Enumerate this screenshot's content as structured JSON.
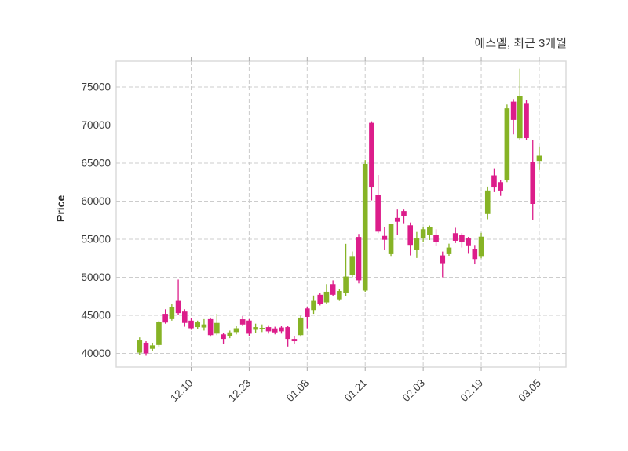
{
  "title": "에스엘, 최근 3개월",
  "chart_data": {
    "type": "candlestick",
    "title": "에스엘, 최근 3개월",
    "ylabel": "Price",
    "xlabel": "",
    "grid": true,
    "legend": "none",
    "ylim": [
      38200,
      78400
    ],
    "y_ticks": [
      40000,
      45000,
      50000,
      55000,
      60000,
      65000,
      70000,
      75000
    ],
    "x_tick_labels": [
      "12.10",
      "12.23",
      "01.08",
      "01.21",
      "02.03",
      "02.19",
      "03.05"
    ],
    "x_tick_indices": [
      8,
      17,
      26,
      35,
      44,
      53,
      62
    ],
    "colors": {
      "up": "#86b325",
      "down": "#dc1d8a",
      "grid": "#cccccc",
      "frame": "#d9d9d9",
      "tick": "#aaaaaa",
      "text": "#3d3d3d"
    },
    "candles": [
      [
        40100,
        42100,
        39800,
        41700
      ],
      [
        41400,
        41600,
        39700,
        40000
      ],
      [
        40600,
        41400,
        40300,
        41050
      ],
      [
        41100,
        44300,
        40900,
        44100
      ],
      [
        45200,
        45800,
        43900,
        44050
      ],
      [
        44500,
        46500,
        44300,
        46100
      ],
      [
        46900,
        49700,
        45100,
        45300
      ],
      [
        45500,
        45800,
        43500,
        44000
      ],
      [
        44300,
        44600,
        43100,
        43300
      ],
      [
        43450,
        44300,
        43200,
        44070
      ],
      [
        43400,
        44500,
        43000,
        43800
      ],
      [
        44500,
        44700,
        42200,
        42400
      ],
      [
        42600,
        45200,
        42400,
        44000
      ],
      [
        42500,
        42700,
        41200,
        41900
      ],
      [
        42250,
        43000,
        42000,
        42760
      ],
      [
        42800,
        43600,
        42500,
        43300
      ],
      [
        44480,
        44900,
        43600,
        43790
      ],
      [
        44310,
        44500,
        42250,
        42590
      ],
      [
        43100,
        43900,
        42700,
        43450
      ],
      [
        43150,
        43800,
        42800,
        43350
      ],
      [
        43450,
        43700,
        42600,
        42900
      ],
      [
        43280,
        43500,
        42500,
        42760
      ],
      [
        43400,
        43600,
        42600,
        42900
      ],
      [
        43450,
        43600,
        40900,
        41900
      ],
      [
        41900,
        42300,
        41300,
        41600
      ],
      [
        42400,
        44950,
        42200,
        44700
      ],
      [
        45900,
        46100,
        43300,
        44800
      ],
      [
        45700,
        47600,
        45200,
        46900
      ],
      [
        47700,
        47900,
        46300,
        46500
      ],
      [
        46700,
        49100,
        46500,
        48100
      ],
      [
        49100,
        49600,
        47500,
        47700
      ],
      [
        47100,
        48400,
        46900,
        48200
      ],
      [
        47900,
        54400,
        47500,
        50100
      ],
      [
        50300,
        53400,
        50000,
        52700
      ],
      [
        55300,
        55700,
        49200,
        49600
      ],
      [
        48250,
        65400,
        48100,
        64900
      ],
      [
        70300,
        70500,
        60100,
        61800
      ],
      [
        60800,
        63450,
        55800,
        56000
      ],
      [
        55440,
        56650,
        53560,
        54930
      ],
      [
        53050,
        57000,
        52710,
        56990
      ],
      [
        57800,
        58900,
        55600,
        57300
      ],
      [
        58700,
        58900,
        57100,
        58000
      ],
      [
        56830,
        57200,
        52880,
        54260
      ],
      [
        53560,
        55960,
        52540,
        55100
      ],
      [
        55100,
        56650,
        54590,
        56310
      ],
      [
        55620,
        56800,
        54900,
        56650
      ],
      [
        55620,
        56310,
        54080,
        54590
      ],
      [
        52880,
        53390,
        50000,
        51850
      ],
      [
        53050,
        54420,
        52800,
        53910
      ],
      [
        55800,
        56500,
        54500,
        54800
      ],
      [
        55620,
        55800,
        53910,
        54660
      ],
      [
        55100,
        55300,
        53100,
        54200
      ],
      [
        53700,
        54250,
        51700,
        52400
      ],
      [
        52700,
        55850,
        52500,
        55340
      ],
      [
        58320,
        61920,
        57630,
        61410
      ],
      [
        63400,
        64320,
        61200,
        61800
      ],
      [
        62500,
        62800,
        60700,
        61400
      ],
      [
        62800,
        72700,
        62500,
        72200
      ],
      [
        73080,
        73420,
        68790,
        70680
      ],
      [
        68280,
        77400,
        68000,
        73770
      ],
      [
        72900,
        73300,
        68000,
        68300
      ],
      [
        65120,
        68030,
        57580,
        59640
      ],
      [
        65290,
        67180,
        64090,
        65980
      ]
    ]
  }
}
